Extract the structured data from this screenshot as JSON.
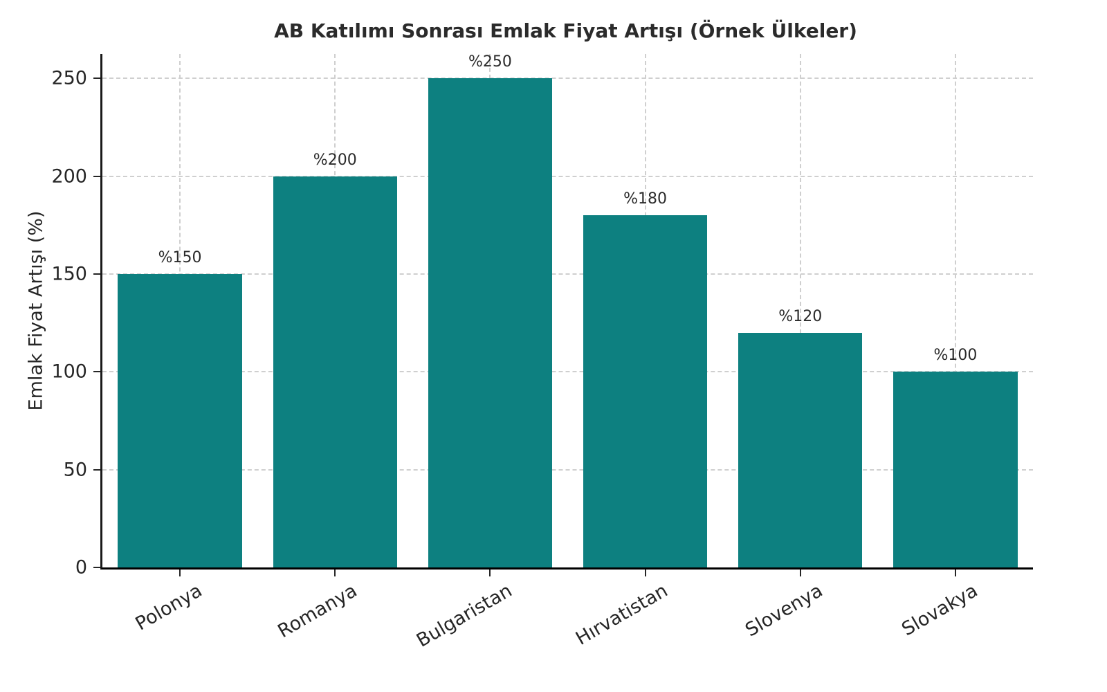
{
  "chart_data": {
    "type": "bar",
    "title": "AB Katılımı Sonrası Emlak Fiyat Artışı (Örnek Ülkeler)",
    "xlabel": "",
    "ylabel": "Emlak Fiyat Artışı (%)",
    "categories": [
      "Polonya",
      "Romanya",
      "Bulgaristan",
      "Hırvatistan",
      "Slovenya",
      "Slovakya"
    ],
    "values": [
      150,
      200,
      250,
      180,
      120,
      100
    ],
    "bar_labels": [
      "%150",
      "%200",
      "%250",
      "%180",
      "%120",
      "%100"
    ],
    "y_ticks": [
      0,
      50,
      100,
      150,
      200,
      250
    ],
    "y_tick_labels": [
      "0",
      "50",
      "100",
      "150",
      "200",
      "250"
    ],
    "ylim": [
      0,
      262.5
    ],
    "grid": "dashed",
    "legend": "none",
    "bar_color": "#0d8080",
    "bar_width_fraction": 0.8
  }
}
